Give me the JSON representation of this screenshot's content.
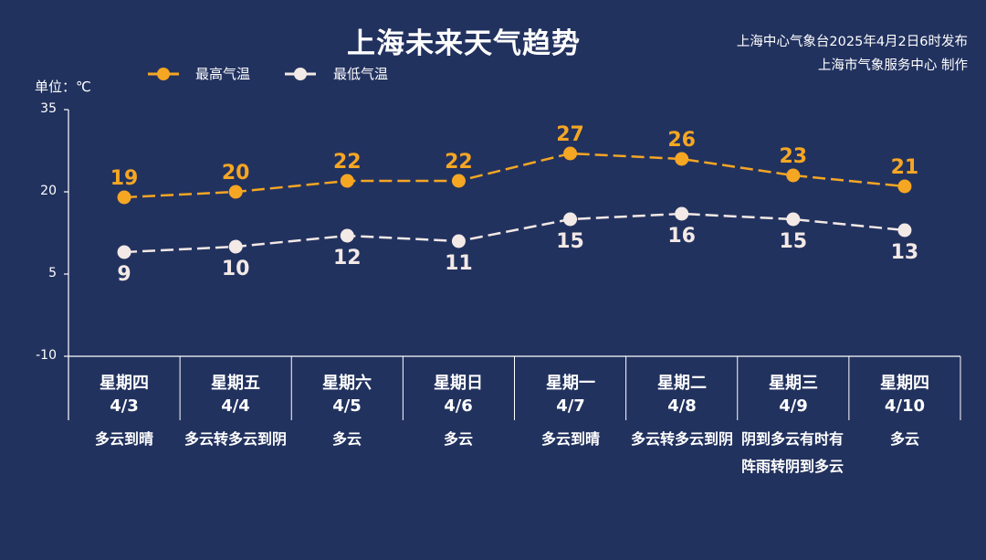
{
  "header": {
    "title": "上海未来天气趋势",
    "credit_line1": "上海中心气象台2025年4月2日6时发布",
    "credit_line2": "上海市气象服务中心 制作"
  },
  "legend": {
    "high_label": "最高气温",
    "low_label": "最低气温"
  },
  "unit_label": "单位：℃",
  "colors": {
    "background": "#22325f",
    "high": "#f5a623",
    "low": "#f3e9e6",
    "axis": "#ffffff"
  },
  "days": [
    {
      "dow": "星期四",
      "date": "4/3",
      "condition": "多云到晴"
    },
    {
      "dow": "星期五",
      "date": "4/4",
      "condition": "多云转多云到阴"
    },
    {
      "dow": "星期六",
      "date": "4/5",
      "condition": "多云"
    },
    {
      "dow": "星期日",
      "date": "4/6",
      "condition": "多云"
    },
    {
      "dow": "星期一",
      "date": "4/7",
      "condition": "多云到晴"
    },
    {
      "dow": "星期二",
      "date": "4/8",
      "condition": "多云转多云到阴"
    },
    {
      "dow": "星期三",
      "date": "4/9",
      "condition": "阴到多云有时有阵雨转阴到多云"
    },
    {
      "dow": "星期四",
      "date": "4/10",
      "condition": "多云"
    }
  ],
  "chart_data": {
    "type": "line",
    "categories": [
      "4/3",
      "4/4",
      "4/5",
      "4/6",
      "4/7",
      "4/8",
      "4/9",
      "4/10"
    ],
    "series": [
      {
        "name": "最高气温",
        "values": [
          19,
          20,
          22,
          22,
          27,
          26,
          23,
          21
        ]
      },
      {
        "name": "最低气温",
        "values": [
          9,
          10,
          12,
          11,
          15,
          16,
          15,
          13
        ]
      }
    ],
    "title": "上海未来天气趋势",
    "ylabel": "单位：℃",
    "ylim": [
      -10,
      35
    ],
    "yticks": [
      "35",
      "20",
      "5",
      "-10"
    ],
    "grid": false,
    "legend_position": "top-left",
    "line_style": "dashed"
  }
}
